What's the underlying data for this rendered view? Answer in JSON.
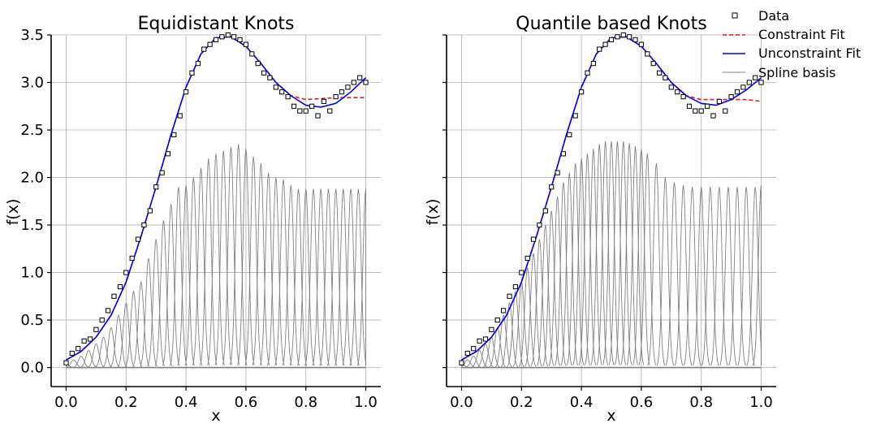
{
  "legend": {
    "placement": "top-right",
    "entries": [
      {
        "label": "Data",
        "style": "marker",
        "color": "#000000"
      },
      {
        "label": "Constraint Fit",
        "style": "dashed",
        "color": "#e41a1c"
      },
      {
        "label": "Unconstraint Fit",
        "style": "solid",
        "color": "#0000ff"
      },
      {
        "label": "Spline basis",
        "style": "thin",
        "color": "#808080"
      }
    ]
  },
  "colors": {
    "constraint": "#e41a1c",
    "unconstraint": "#0000ff",
    "basis": "#808080",
    "data": "#000000",
    "grid": "#b0b0b0"
  },
  "chart_data": [
    {
      "type": "line",
      "title": "Equidistant Knots",
      "xlabel": "x",
      "ylabel": "f(x)",
      "xlim": [
        -0.05,
        1.05
      ],
      "ylim": [
        -0.2,
        3.5
      ],
      "xticks": [
        "0.0",
        "0.2",
        "0.4",
        "0.6",
        "0.8",
        "1.0"
      ],
      "yticks": [
        "0.0",
        "0.5",
        "1.0",
        "1.5",
        "2.0",
        "2.5",
        "3.0",
        "3.5"
      ],
      "grid": true,
      "series": [
        {
          "name": "Data",
          "kind": "scatter",
          "x": [
            0.0,
            0.02,
            0.04,
            0.06,
            0.08,
            0.1,
            0.12,
            0.14,
            0.16,
            0.18,
            0.2,
            0.22,
            0.24,
            0.26,
            0.28,
            0.3,
            0.32,
            0.34,
            0.36,
            0.38,
            0.4,
            0.42,
            0.44,
            0.46,
            0.48,
            0.5,
            0.52,
            0.54,
            0.56,
            0.58,
            0.6,
            0.62,
            0.64,
            0.66,
            0.68,
            0.7,
            0.72,
            0.74,
            0.76,
            0.78,
            0.8,
            0.82,
            0.84,
            0.86,
            0.88,
            0.9,
            0.92,
            0.94,
            0.96,
            0.98,
            1.0
          ],
          "y": [
            0.05,
            0.15,
            0.2,
            0.28,
            0.3,
            0.4,
            0.5,
            0.6,
            0.75,
            0.85,
            1.0,
            1.15,
            1.35,
            1.5,
            1.65,
            1.9,
            2.05,
            2.25,
            2.45,
            2.65,
            2.9,
            3.1,
            3.2,
            3.35,
            3.4,
            3.45,
            3.48,
            3.5,
            3.48,
            3.45,
            3.4,
            3.3,
            3.2,
            3.1,
            3.05,
            2.95,
            2.9,
            2.85,
            2.75,
            2.7,
            2.7,
            2.75,
            2.65,
            2.8,
            2.7,
            2.85,
            2.9,
            2.95,
            3.0,
            3.05,
            3.0
          ]
        },
        {
          "name": "Constraint Fit",
          "kind": "line",
          "x": [
            0.0,
            0.05,
            0.1,
            0.15,
            0.2,
            0.25,
            0.3,
            0.35,
            0.4,
            0.45,
            0.5,
            0.55,
            0.6,
            0.65,
            0.7,
            0.75,
            0.8,
            0.85,
            0.9,
            0.95,
            1.0
          ],
          "y": [
            0.08,
            0.17,
            0.32,
            0.55,
            0.9,
            1.38,
            1.9,
            2.45,
            2.95,
            3.3,
            3.47,
            3.48,
            3.38,
            3.2,
            3.0,
            2.86,
            2.82,
            2.83,
            2.84,
            2.84,
            2.84
          ]
        },
        {
          "name": "Unconstraint Fit",
          "kind": "line",
          "x": [
            0.0,
            0.05,
            0.1,
            0.15,
            0.2,
            0.25,
            0.3,
            0.35,
            0.4,
            0.45,
            0.5,
            0.55,
            0.6,
            0.65,
            0.7,
            0.75,
            0.8,
            0.85,
            0.9,
            0.95,
            1.0
          ],
          "y": [
            0.08,
            0.17,
            0.32,
            0.55,
            0.9,
            1.38,
            1.9,
            2.45,
            2.95,
            3.3,
            3.47,
            3.48,
            3.38,
            3.2,
            3.0,
            2.86,
            2.76,
            2.74,
            2.78,
            2.9,
            3.05
          ]
        },
        {
          "name": "Spline basis",
          "kind": "basis",
          "centers": [
            0.0,
            0.025,
            0.05,
            0.075,
            0.1,
            0.125,
            0.15,
            0.175,
            0.2,
            0.225,
            0.25,
            0.275,
            0.3,
            0.325,
            0.35,
            0.375,
            0.4,
            0.425,
            0.45,
            0.475,
            0.5,
            0.525,
            0.55,
            0.575,
            0.6,
            0.625,
            0.65,
            0.675,
            0.7,
            0.725,
            0.75,
            0.775,
            0.8,
            0.825,
            0.85,
            0.875,
            0.9,
            0.925,
            0.95,
            0.975,
            1.0
          ],
          "heights": [
            0.04,
            0.08,
            0.12,
            0.18,
            0.25,
            0.32,
            0.42,
            0.55,
            0.68,
            0.8,
            0.9,
            1.15,
            1.35,
            1.55,
            1.72,
            1.9,
            1.92,
            2.0,
            2.1,
            2.2,
            2.25,
            2.28,
            2.32,
            2.35,
            2.3,
            2.22,
            2.15,
            2.05,
            2.0,
            1.98,
            1.92,
            1.88,
            1.88,
            1.88,
            1.88,
            1.88,
            1.88,
            1.88,
            1.88,
            1.88,
            1.88
          ]
        }
      ]
    },
    {
      "type": "line",
      "title": "Quantile based Knots",
      "xlabel": "x",
      "ylabel": "f(x)",
      "xlim": [
        -0.05,
        1.05
      ],
      "ylim": [
        -0.2,
        3.5
      ],
      "xticks": [
        "0.0",
        "0.2",
        "0.4",
        "0.6",
        "0.8",
        "1.0"
      ],
      "yticks": [],
      "grid": true,
      "series": [
        {
          "name": "Data",
          "kind": "scatter",
          "x": [
            0.0,
            0.02,
            0.04,
            0.06,
            0.08,
            0.1,
            0.12,
            0.14,
            0.16,
            0.18,
            0.2,
            0.22,
            0.24,
            0.26,
            0.28,
            0.3,
            0.32,
            0.34,
            0.36,
            0.38,
            0.4,
            0.42,
            0.44,
            0.46,
            0.48,
            0.5,
            0.52,
            0.54,
            0.56,
            0.58,
            0.6,
            0.62,
            0.64,
            0.66,
            0.68,
            0.7,
            0.72,
            0.74,
            0.76,
            0.78,
            0.8,
            0.82,
            0.84,
            0.86,
            0.88,
            0.9,
            0.92,
            0.94,
            0.96,
            0.98,
            1.0
          ],
          "y": [
            0.05,
            0.15,
            0.2,
            0.28,
            0.3,
            0.4,
            0.5,
            0.6,
            0.75,
            0.85,
            1.0,
            1.15,
            1.35,
            1.5,
            1.65,
            1.9,
            2.05,
            2.25,
            2.45,
            2.65,
            2.9,
            3.1,
            3.2,
            3.35,
            3.4,
            3.45,
            3.48,
            3.5,
            3.48,
            3.45,
            3.4,
            3.3,
            3.2,
            3.1,
            3.05,
            2.95,
            2.9,
            2.85,
            2.75,
            2.7,
            2.7,
            2.75,
            2.65,
            2.8,
            2.7,
            2.85,
            2.9,
            2.95,
            3.0,
            3.05,
            3.0
          ]
        },
        {
          "name": "Constraint Fit",
          "kind": "line",
          "x": [
            0.0,
            0.05,
            0.1,
            0.15,
            0.2,
            0.25,
            0.3,
            0.35,
            0.4,
            0.45,
            0.5,
            0.55,
            0.6,
            0.65,
            0.7,
            0.75,
            0.8,
            0.85,
            0.9,
            0.95,
            1.0
          ],
          "y": [
            0.08,
            0.17,
            0.32,
            0.55,
            0.9,
            1.38,
            1.9,
            2.45,
            2.95,
            3.3,
            3.47,
            3.48,
            3.38,
            3.2,
            3.0,
            2.86,
            2.82,
            2.82,
            2.82,
            2.82,
            2.8
          ]
        },
        {
          "name": "Unconstraint Fit",
          "kind": "line",
          "x": [
            0.0,
            0.05,
            0.1,
            0.15,
            0.2,
            0.25,
            0.3,
            0.35,
            0.4,
            0.45,
            0.5,
            0.55,
            0.6,
            0.65,
            0.7,
            0.75,
            0.8,
            0.85,
            0.9,
            0.95,
            1.0
          ],
          "y": [
            0.08,
            0.17,
            0.32,
            0.55,
            0.9,
            1.38,
            1.9,
            2.45,
            2.95,
            3.3,
            3.47,
            3.48,
            3.38,
            3.2,
            3.0,
            2.86,
            2.78,
            2.76,
            2.82,
            2.92,
            3.05
          ]
        },
        {
          "name": "Spline basis",
          "kind": "basis",
          "centers": [
            0.0,
            0.02,
            0.04,
            0.06,
            0.08,
            0.1,
            0.12,
            0.14,
            0.16,
            0.18,
            0.2,
            0.22,
            0.24,
            0.26,
            0.28,
            0.3,
            0.32,
            0.34,
            0.36,
            0.38,
            0.4,
            0.42,
            0.44,
            0.46,
            0.48,
            0.5,
            0.52,
            0.54,
            0.56,
            0.58,
            0.6,
            0.62,
            0.65,
            0.68,
            0.71,
            0.74,
            0.77,
            0.8,
            0.83,
            0.86,
            0.89,
            0.92,
            0.95,
            0.98,
            1.0
          ],
          "heights": [
            0.04,
            0.08,
            0.12,
            0.18,
            0.25,
            0.32,
            0.42,
            0.55,
            0.68,
            0.8,
            0.9,
            1.05,
            1.2,
            1.35,
            1.5,
            1.65,
            1.8,
            1.95,
            2.05,
            2.15,
            2.2,
            2.25,
            2.3,
            2.35,
            2.38,
            2.38,
            2.38,
            2.38,
            2.36,
            2.33,
            2.3,
            2.25,
            2.15,
            2.0,
            1.95,
            1.92,
            1.9,
            1.9,
            1.9,
            1.9,
            1.9,
            1.9,
            1.9,
            1.9,
            1.92
          ]
        }
      ]
    }
  ]
}
